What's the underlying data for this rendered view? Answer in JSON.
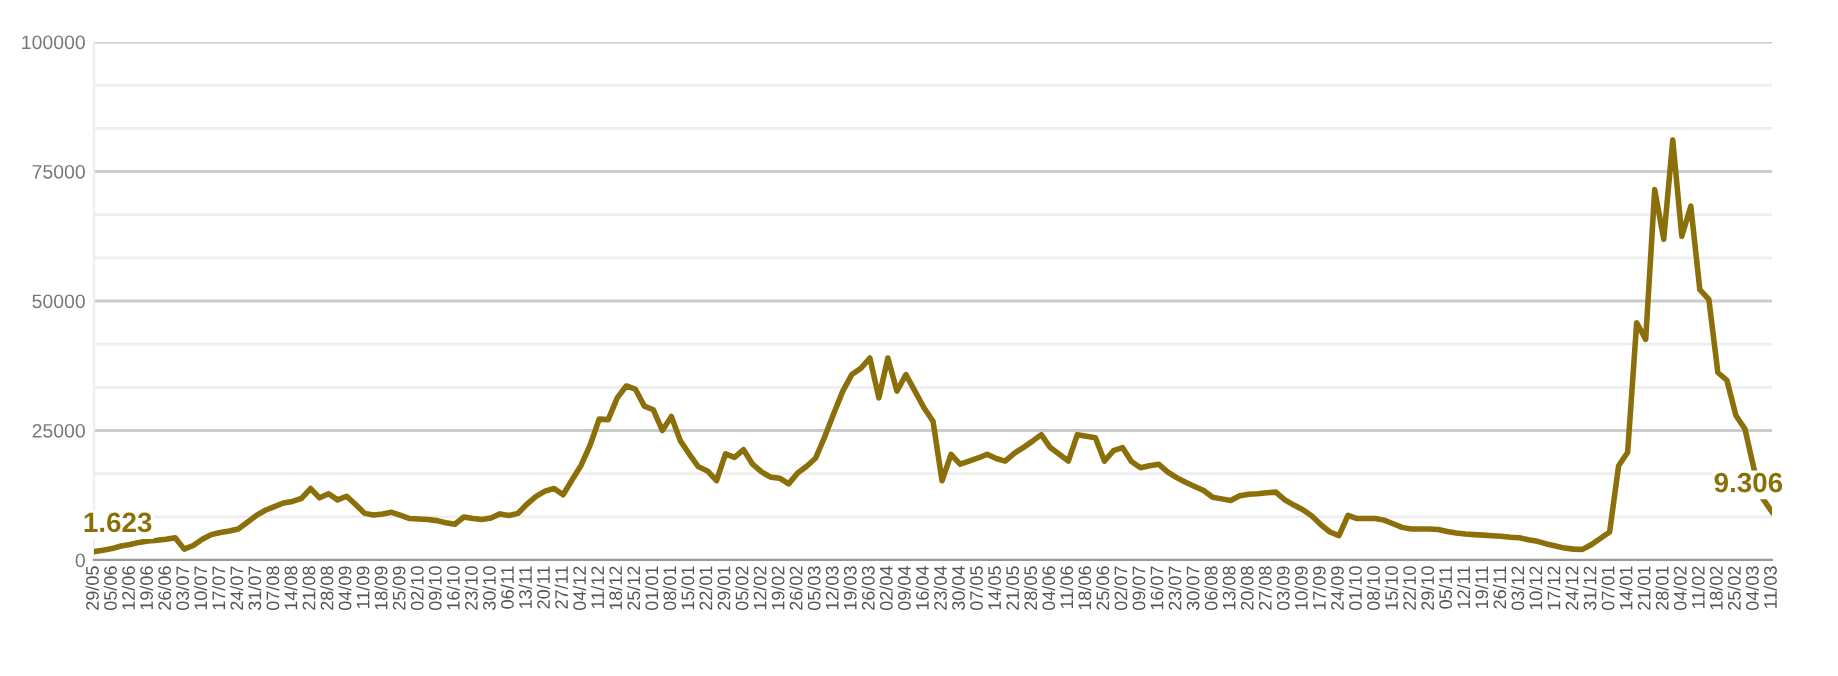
{
  "chart_data": {
    "type": "line",
    "categories": [
      "29/05",
      null,
      "05/06",
      null,
      "12/06",
      null,
      "19/06",
      null,
      "26/06",
      null,
      "03/07",
      null,
      "10/07",
      null,
      "17/07",
      null,
      "24/07",
      null,
      "31/07",
      null,
      "07/08",
      null,
      "14/08",
      null,
      "21/08",
      null,
      "28/08",
      null,
      "04/09",
      null,
      "11/09",
      null,
      "18/09",
      null,
      "25/09",
      null,
      "02/10",
      null,
      "09/10",
      null,
      "16/10",
      null,
      "23/10",
      null,
      "30/10",
      null,
      "06/11",
      null,
      "13/11",
      null,
      "20/11",
      null,
      "27/11",
      null,
      "04/12",
      null,
      "11/12",
      null,
      "18/12",
      null,
      "25/12",
      null,
      "01/01",
      null,
      "08/01",
      null,
      "15/01",
      null,
      "22/01",
      null,
      "29/01",
      null,
      "05/02",
      null,
      "12/02",
      null,
      "19/02",
      null,
      "26/02",
      null,
      "05/03",
      null,
      "12/03",
      null,
      "19/03",
      null,
      "26/03",
      null,
      "02/04",
      null,
      "09/04",
      null,
      "16/04",
      null,
      "23/04",
      null,
      "30/04",
      null,
      "07/05",
      null,
      "14/05",
      null,
      "21/05",
      null,
      "28/05",
      null,
      "04/06",
      null,
      "11/06",
      null,
      "18/06",
      null,
      "25/06",
      null,
      "02/07",
      null,
      "09/07",
      null,
      "16/07",
      null,
      "23/07",
      null,
      "30/07",
      null,
      "06/08",
      null,
      "13/08",
      null,
      "20/08",
      null,
      "27/08",
      null,
      "03/09",
      null,
      "10/09",
      null,
      "17/09",
      null,
      "24/09",
      null,
      "01/10",
      null,
      "08/10",
      null,
      "15/10",
      null,
      "22/10",
      null,
      "29/10",
      null,
      "05/11",
      null,
      "12/11",
      null,
      "19/11",
      null,
      "26/11",
      null,
      "03/12",
      null,
      "10/12",
      null,
      "17/12",
      null,
      "24/12",
      null,
      "31/12",
      null,
      "07/01",
      null,
      "14/01",
      null,
      "21/01",
      null,
      "28/01",
      null,
      "04/02",
      null,
      "11/02",
      null,
      "18/02",
      null,
      "25/02",
      null,
      "04/03",
      null,
      "11/03"
    ],
    "series": [
      {
        "color": "#8b6f0a",
        "values": [
          1623,
          1900,
          2200,
          2700,
          3000,
          3400,
          3650,
          3800,
          4000,
          4300,
          2100,
          2800,
          4000,
          4900,
          5300,
          5600,
          6000,
          7300,
          8600,
          9600,
          10300,
          11000,
          11300,
          11900,
          13800,
          12000,
          12800,
          11600,
          12300,
          10700,
          9000,
          8700,
          8900,
          9200,
          8600,
          8000,
          7900,
          7800,
          7600,
          7200,
          6900,
          8300,
          8000,
          7800,
          8100,
          8900,
          8600,
          9000,
          10800,
          12300,
          13300,
          13800,
          12600,
          15500,
          18300,
          22200,
          27200,
          27100,
          31300,
          33600,
          33000,
          29700,
          29000,
          25000,
          27700,
          23000,
          20400,
          18000,
          17200,
          15300,
          20500,
          19800,
          21300,
          18500,
          17000,
          16000,
          15800,
          14700,
          16800,
          18100,
          19700,
          23800,
          28300,
          32600,
          35800,
          37000,
          39000,
          31300,
          39000,
          32600,
          35800,
          32600,
          29400,
          26800,
          15300,
          20400,
          18500,
          19100,
          19700,
          20400,
          19600,
          19100,
          20600,
          21700,
          22900,
          24200,
          21700,
          20400,
          19100,
          24200,
          23900,
          23600,
          19100,
          21100,
          21700,
          19000,
          17800,
          18200,
          18500,
          17000,
          15900,
          15000,
          14200,
          13400,
          12100,
          11800,
          11500,
          12400,
          12700,
          12800,
          13000,
          13100,
          11600,
          10600,
          9700,
          8500,
          6800,
          5400,
          4700,
          8600,
          8000,
          8000,
          8000,
          7700,
          7000,
          6300,
          6000,
          6000,
          6000,
          5900,
          5500,
          5200,
          5000,
          4900,
          4800,
          4700,
          4600,
          4400,
          4300,
          3900,
          3600,
          3100,
          2700,
          2300,
          2100,
          2050,
          3000,
          4200,
          5400,
          18200,
          20800,
          45800,
          42600,
          71500,
          61900,
          81100,
          62500,
          68300,
          52200,
          50300,
          36200,
          34700,
          27900,
          25300,
          17600,
          11800,
          9306
        ]
      }
    ],
    "ylim": [
      0,
      100000
    ],
    "yticks": [
      0,
      25000,
      50000,
      75000,
      100000
    ],
    "annotations": [
      {
        "text": "1.623",
        "x": "29/05",
        "y": 1623
      },
      {
        "text": "9.306",
        "x": "11/03",
        "y": 9306
      }
    ],
    "grid": "y",
    "marker": "none",
    "line_style": "solid"
  }
}
